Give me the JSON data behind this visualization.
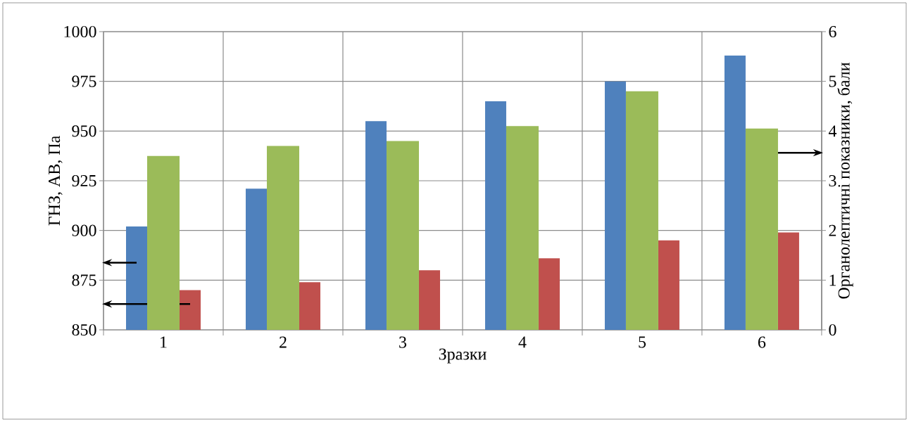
{
  "chart_data": {
    "type": "bar",
    "xlabel": "Зразки",
    "ylabel": "ГНЗ, АВ, Па",
    "y2label": "Органолептичні показники, бали",
    "categories": [
      "1",
      "2",
      "3",
      "4",
      "5",
      "6"
    ],
    "series": [
      {
        "color": "#4f81bd",
        "axis": "y",
        "values": [
          902,
          921,
          955,
          965,
          975,
          988
        ]
      },
      {
        "color": "#9bbb59",
        "axis": "y2",
        "values": [
          3.5,
          3.7,
          3.8,
          4.1,
          4.8,
          4.05
        ]
      },
      {
        "color": "#c0504d",
        "axis": "y",
        "values": [
          870,
          874,
          880,
          886,
          895,
          899
        ]
      }
    ],
    "ylim": [
      850,
      1000
    ],
    "yticks": [
      850,
      875,
      900,
      925,
      950,
      975,
      1000
    ],
    "y2lim": [
      0,
      6
    ],
    "y2ticks": [
      0,
      1,
      2,
      3,
      4,
      5,
      6
    ],
    "grid": true
  }
}
